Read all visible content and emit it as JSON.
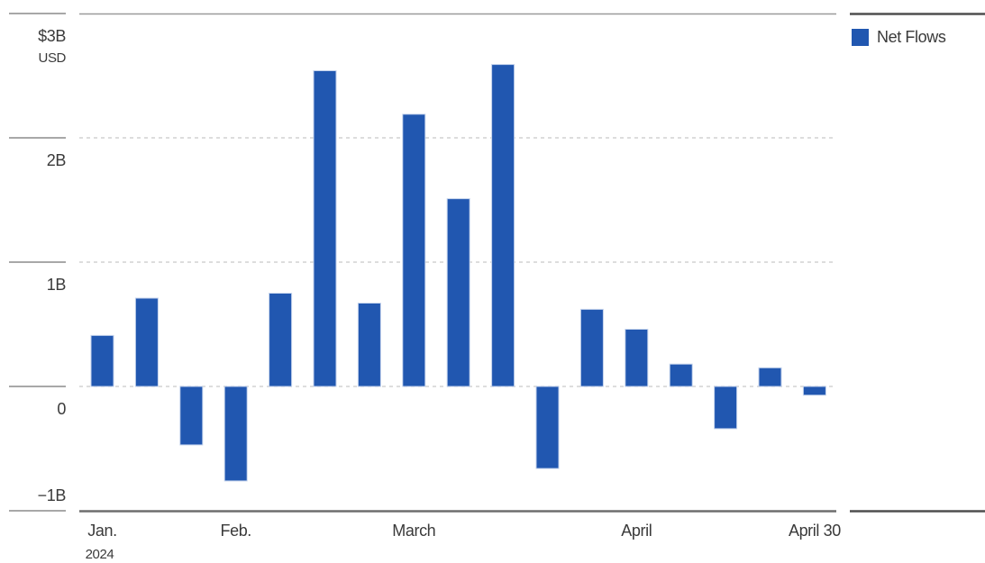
{
  "chart_data": {
    "type": "bar",
    "unit": "USD billions",
    "ylabel": "",
    "xlabel": "",
    "ylim": [
      -1,
      3
    ],
    "grid": {
      "dashed_gridlines_at": [
        2,
        1,
        0
      ],
      "solid_border_at": [
        3,
        -1
      ],
      "legend_position": "top-right"
    },
    "series": [
      {
        "name": "Net Flows",
        "values": [
          0.41,
          0.71,
          -0.47,
          -0.76,
          0.75,
          2.54,
          0.67,
          2.19,
          1.51,
          2.59,
          -0.66,
          0.62,
          0.46,
          0.18,
          -0.34,
          0.15,
          -0.07
        ]
      }
    ],
    "y_axis": {
      "ticks": [
        {
          "value": 3,
          "label": "$3B",
          "sub": "USD",
          "label_position": "below"
        },
        {
          "value": 2,
          "label": "2B",
          "label_position": "below"
        },
        {
          "value": 1,
          "label": "1B",
          "label_position": "below"
        },
        {
          "value": 0,
          "label": "0",
          "label_position": "below"
        },
        {
          "value": -1,
          "label": "−1B",
          "label_position": "above"
        }
      ]
    },
    "x_axis": {
      "ticks": [
        {
          "bar_index": 0,
          "label": "Jan.",
          "sub": "2024"
        },
        {
          "bar_index": 3,
          "label": "Feb."
        },
        {
          "bar_index": 7,
          "label": "March"
        },
        {
          "bar_index": 12,
          "label": "April"
        },
        {
          "bar_index": 16,
          "label": "April 30"
        }
      ]
    },
    "legend": {
      "entries": [
        {
          "label": "Net Flows"
        }
      ]
    },
    "colors": {
      "bar": "#2157B0",
      "bar_border": "#C3D2EC",
      "axis_dark": "#6E6E6E",
      "plot_top_border": "#9A9A9A",
      "tick": "#8C8C8C",
      "gridline": "#D2D2D2",
      "text": "#3A3A3A",
      "legend_border": "#4F4F4F"
    }
  }
}
